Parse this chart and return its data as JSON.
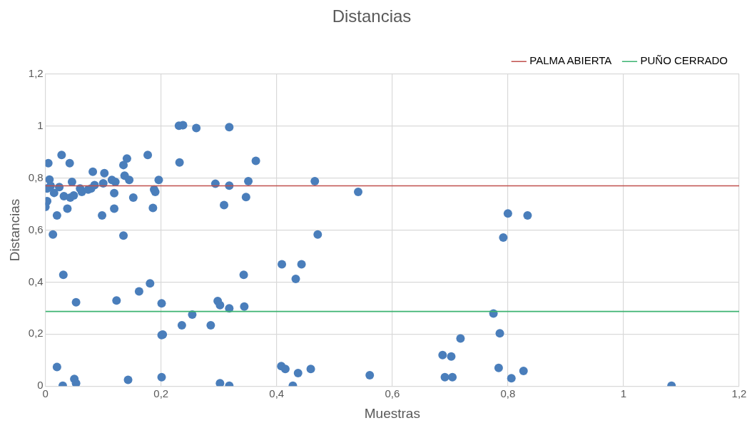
{
  "chart_data": {
    "type": "scatter",
    "title": "Distancias",
    "xlabel": "Muestras",
    "ylabel": "Distancias",
    "xlim": [
      0,
      1.2
    ],
    "ylim": [
      0,
      1.2
    ],
    "xticks": [
      0,
      {
        "value": 0.2,
        "label": "0,2"
      },
      {
        "value": 0.4,
        "label": "0,4"
      },
      {
        "value": 0.6,
        "label": "0,6"
      },
      {
        "value": 0.8,
        "label": "0,8"
      },
      1,
      {
        "value": 1.2,
        "label": "1,2"
      }
    ],
    "yticks": [
      0,
      {
        "value": 0.2,
        "label": "0,2"
      },
      {
        "value": 0.4,
        "label": "0,4"
      },
      {
        "value": 0.6,
        "label": "0,6"
      },
      {
        "value": 0.8,
        "label": "0,8"
      },
      1,
      {
        "value": 1.2,
        "label": "1,2"
      }
    ],
    "grid": true,
    "legend": "top right",
    "series": [
      {
        "color": "#4a7ebb",
        "marker": "circle",
        "x": [
          0.005,
          0.028,
          0.042,
          0.082,
          0.102,
          0.141,
          0.135,
          0.177,
          0.232,
          0.137,
          0.145,
          0.196,
          0.007,
          0.046,
          0.1,
          0.115,
          0.121,
          0.188,
          0.19,
          0.119,
          0.152,
          0.003,
          0.015,
          0.032,
          0.043,
          0.049,
          0.063,
          0.079,
          0.085,
          0.003,
          0.0,
          0.038,
          0.02,
          0.098,
          0.119,
          0.186,
          0.013,
          0.135,
          0.009,
          0.024,
          0.074,
          0.06,
          0.231,
          0.238,
          0.261,
          0.318,
          0.364,
          0.294,
          0.318,
          0.351,
          0.347,
          0.309,
          0.466,
          0.541,
          0.471,
          0.031,
          0.053,
          0.123,
          0.162,
          0.181,
          0.201,
          0.254,
          0.236,
          0.286,
          0.298,
          0.302,
          0.318,
          0.343,
          0.344,
          0.201,
          0.203,
          0.02,
          0.05,
          0.053,
          0.03,
          0.143,
          0.201,
          0.302,
          0.318,
          0.409,
          0.443,
          0.433,
          0.408,
          0.415,
          0.437,
          0.459,
          0.428,
          0.561,
          0.687,
          0.702,
          0.718,
          0.691,
          0.704,
          0.775,
          0.786,
          0.784,
          0.806,
          0.827,
          0.792,
          0.8,
          0.834,
          1.083
        ],
        "values": [
          0.857,
          0.889,
          0.857,
          0.824,
          0.819,
          0.875,
          0.85,
          0.889,
          0.86,
          0.809,
          0.793,
          0.793,
          0.794,
          0.785,
          0.78,
          0.793,
          0.785,
          0.756,
          0.747,
          0.742,
          0.725,
          0.76,
          0.743,
          0.73,
          0.725,
          0.733,
          0.747,
          0.76,
          0.773,
          0.711,
          0.689,
          0.682,
          0.656,
          0.656,
          0.682,
          0.685,
          0.583,
          0.579,
          0.77,
          0.765,
          0.756,
          0.76,
          1.001,
          1.003,
          0.992,
          0.996,
          0.866,
          0.778,
          0.771,
          0.788,
          0.727,
          0.696,
          0.788,
          0.747,
          0.583,
          0.428,
          0.322,
          0.329,
          0.364,
          0.395,
          0.318,
          0.275,
          0.234,
          0.234,
          0.327,
          0.311,
          0.299,
          0.428,
          0.306,
          0.196,
          0.198,
          0.073,
          0.027,
          0.011,
          0.001,
          0.024,
          0.034,
          0.011,
          0.001,
          0.468,
          0.468,
          0.412,
          0.077,
          0.066,
          0.05,
          0.066,
          0.001,
          0.042,
          0.119,
          0.114,
          0.183,
          0.034,
          0.034,
          0.279,
          0.203,
          0.07,
          0.03,
          0.058,
          0.571,
          0.664,
          0.656,
          0.001
        ]
      },
      {
        "type": "line",
        "name": "PALMA ABIERTA",
        "color": "#c0504d",
        "marker": "none",
        "x": [
          0,
          1.2
        ],
        "values": [
          0.77,
          0.77
        ]
      },
      {
        "type": "line",
        "name": "PUÑO CERRADO",
        "color": "#3cb371",
        "marker": "none",
        "x": [
          0,
          1.2
        ],
        "values": [
          0.287,
          0.287
        ]
      }
    ]
  }
}
